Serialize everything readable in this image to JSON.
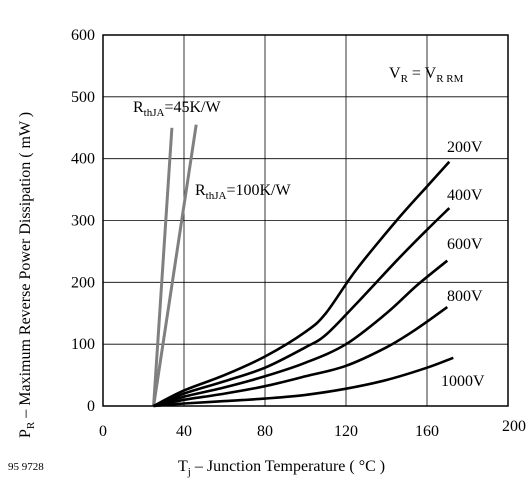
{
  "chart_data": {
    "type": "line",
    "figure_id": "95 9728",
    "xlabel": {
      "main": "T",
      "sub": "j",
      "rest": " – Junction Temperature ( °C )"
    },
    "ylabel": {
      "main": "P",
      "sub": "R",
      "rest": " – Maximum Reverse Power Dissipation ( mW )"
    },
    "xlim": [
      0,
      200
    ],
    "ylim": [
      0,
      600
    ],
    "xticks": [
      0,
      40,
      80,
      120,
      160,
      200
    ],
    "yticks": [
      0,
      100,
      200,
      300,
      400,
      500,
      600
    ],
    "grid": true,
    "condition": {
      "v1": "V",
      "v1_sub": "R",
      "eq": " = ",
      "v2": "V",
      "v2_sub": "R RM"
    },
    "series": [
      {
        "name": "200V",
        "color": "#000000",
        "x": [
          25,
          40,
          60,
          80,
          100,
          110,
          125,
          145,
          160,
          171
        ],
        "y": [
          0,
          25,
          50,
          80,
          120,
          150,
          220,
          300,
          355,
          395
        ]
      },
      {
        "name": "400V",
        "color": "#000000",
        "x": [
          25,
          40,
          60,
          80,
          100,
          110,
          125,
          145,
          160,
          171
        ],
        "y": [
          0,
          20,
          40,
          62,
          95,
          115,
          165,
          235,
          285,
          320
        ]
      },
      {
        "name": "600V",
        "color": "#000000",
        "x": [
          25,
          40,
          60,
          80,
          100,
          120,
          140,
          155,
          170
        ],
        "y": [
          0,
          15,
          30,
          48,
          70,
          100,
          150,
          195,
          235
        ]
      },
      {
        "name": "800V",
        "color": "#000000",
        "x": [
          25,
          40,
          60,
          80,
          100,
          120,
          140,
          155,
          170
        ],
        "y": [
          0,
          10,
          20,
          32,
          48,
          65,
          95,
          125,
          160
        ]
      },
      {
        "name": "1000V",
        "color": "#000000",
        "x": [
          25,
          40,
          60,
          80,
          100,
          120,
          140,
          160,
          173
        ],
        "y": [
          0,
          4,
          8,
          12,
          18,
          28,
          42,
          62,
          78
        ]
      }
    ],
    "thermal_lines": [
      {
        "label_main": "R",
        "label_sub": "thJA",
        "label_rest": "=45K/W",
        "color": "#808080",
        "x": [
          25,
          34
        ],
        "y": [
          0,
          450
        ]
      },
      {
        "label_main": "R",
        "label_sub": "thJA",
        "label_rest": "=100K/W",
        "color": "#808080",
        "x": [
          25,
          46
        ],
        "y": [
          0,
          455
        ]
      }
    ]
  }
}
